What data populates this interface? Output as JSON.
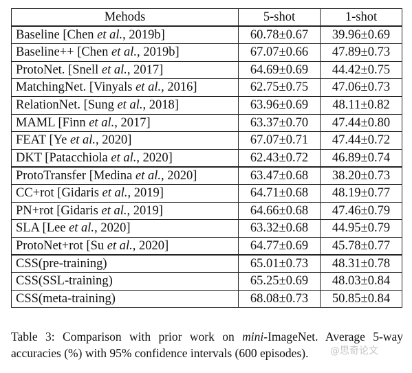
{
  "table": {
    "headers": [
      "Mehods",
      "5-shot",
      "1-shot"
    ],
    "groups": [
      {
        "rows": [
          {
            "pre": "Baseline [Chen ",
            "etal": "et al.",
            "post": ", 2019b]",
            "s5": "60.78±0.67",
            "s1": "39.96±0.69"
          },
          {
            "pre": "Baseline++ [Chen ",
            "etal": "et al.",
            "post": ", 2019b]",
            "s5": "67.07±0.66",
            "s1": "47.89±0.73"
          },
          {
            "pre": "ProtoNet. [Snell ",
            "etal": "et al.",
            "post": ", 2017]",
            "s5": "64.69±0.69",
            "s1": "44.42±0.75"
          },
          {
            "pre": "MatchingNet. [Vinyals ",
            "etal": "et al.",
            "post": ", 2016]",
            "s5": "62.75±0.75",
            "s1": "47.06±0.73"
          },
          {
            "pre": "RelationNet. [Sung ",
            "etal": "et al.",
            "post": ", 2018]",
            "s5": "63.96±0.69",
            "s1": "48.11±0.82"
          },
          {
            "pre": "MAML [Finn ",
            "etal": "et al.",
            "post": ", 2017]",
            "s5": "63.37±0.70",
            "s1": "47.44±0.80"
          },
          {
            "pre": "FEAT [Ye ",
            "etal": "et al.",
            "post": ", 2020]",
            "s5": "67.07±0.71",
            "s1": "47.44±0.72"
          },
          {
            "pre": "DKT [Patacchiola ",
            "etal": "et al.",
            "post": ", 2020]",
            "s5": "62.43±0.72",
            "s1": "46.89±0.74"
          }
        ]
      },
      {
        "rows": [
          {
            "pre": "ProtoTransfer [Medina ",
            "etal": "et al.",
            "post": ", 2020]",
            "s5": "63.47±0.68",
            "s1": "38.20±0.73"
          },
          {
            "pre": "CC+rot [Gidaris ",
            "etal": "et al.",
            "post": ", 2019]",
            "s5": "64.71±0.68",
            "s1": "48.19±0.77"
          },
          {
            "pre": "PN+rot [Gidaris ",
            "etal": "et al.",
            "post": ", 2019]",
            "s5": "64.66±0.68",
            "s1": "47.46±0.79"
          },
          {
            "pre": "SLA [Lee ",
            "etal": "et al.",
            "post": ", 2020]",
            "s5": "63.32±0.68",
            "s1": "44.95±0.79"
          },
          {
            "pre": "ProtoNet+rot [Su ",
            "etal": "et al.",
            "post": ", 2020]",
            "s5": "64.77±0.69",
            "s1": "45.78±0.77"
          }
        ]
      },
      {
        "rows": [
          {
            "pre": "CSS(pre-training)",
            "etal": "",
            "post": "",
            "s5": "65.01±0.73",
            "s1": "48.31±0.78"
          },
          {
            "pre": "CSS(SSL-training)",
            "etal": "",
            "post": "",
            "s5": "65.25±0.69",
            "s1": "48.03±0.84"
          },
          {
            "pre": "CSS(meta-training)",
            "etal": "",
            "post": "",
            "s5": "68.08±0.73",
            "s1": "50.85±0.84",
            "bold": true
          }
        ]
      }
    ]
  },
  "caption": {
    "prefix": "Table 3: Comparison with prior work on ",
    "italic": "mini",
    "suffix": "-ImageNet. Average 5-way accuracies (%) with 95% confidence intervals (600 episodes)."
  },
  "watermark": "@思奇论文"
}
